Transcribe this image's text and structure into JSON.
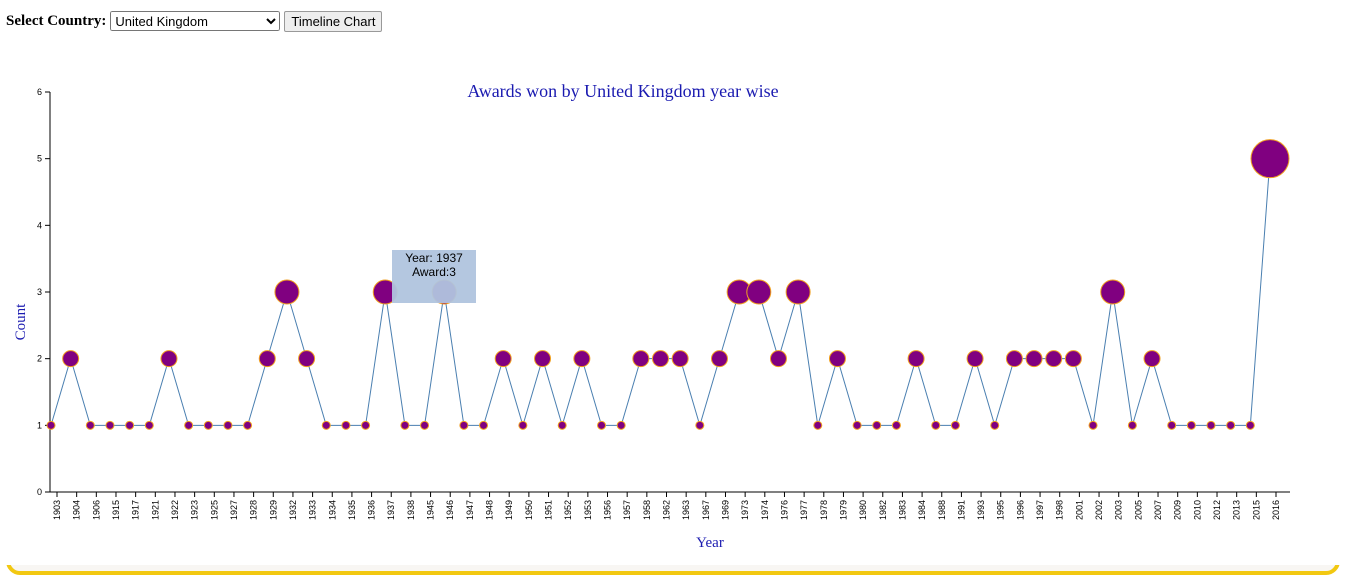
{
  "controls": {
    "label": "Select Country:",
    "selected": "United Kingdom",
    "button": "Timeline Chart"
  },
  "chart_data": {
    "type": "line",
    "title": "Awards won by United Kingdom year wise",
    "x_label": "Year",
    "y_label": "Count",
    "categories": [
      "1903",
      "1904",
      "1906",
      "1915",
      "1917",
      "1921",
      "1922",
      "1923",
      "1925",
      "1927",
      "1928",
      "1929",
      "1932",
      "1933",
      "1934",
      "1935",
      "1936",
      "1937",
      "1938",
      "1945",
      "1946",
      "1947",
      "1948",
      "1949",
      "1950",
      "1951",
      "1952",
      "1953",
      "1956",
      "1957",
      "1958",
      "1962",
      "1963",
      "1967",
      "1969",
      "1973",
      "1974",
      "1976",
      "1977",
      "1978",
      "1979",
      "1980",
      "1982",
      "1983",
      "1984",
      "1988",
      "1991",
      "1993",
      "1995",
      "1996",
      "1997",
      "1998",
      "2001",
      "2002",
      "2003",
      "2005",
      "2007",
      "2009",
      "2010",
      "2012",
      "2013",
      "2015",
      "2016"
    ],
    "values": [
      1,
      2,
      1,
      1,
      1,
      1,
      2,
      1,
      1,
      1,
      1,
      2,
      3,
      2,
      1,
      1,
      1,
      3,
      1,
      1,
      3,
      1,
      1,
      2,
      1,
      2,
      1,
      2,
      1,
      1,
      2,
      2,
      2,
      1,
      2,
      3,
      3,
      2,
      3,
      1,
      2,
      1,
      1,
      1,
      2,
      1,
      1,
      2,
      1,
      2,
      2,
      2,
      2,
      1,
      3,
      1,
      2,
      1,
      1,
      1,
      1,
      1,
      5
    ],
    "color": "#800080",
    "line_color": "#4a7fb0",
    "ylim": [
      0,
      6
    ],
    "yticks": [
      0,
      1,
      2,
      3,
      4,
      5,
      6
    ],
    "tooltip": {
      "year": "Year: 1937",
      "award": "Award:3"
    }
  }
}
